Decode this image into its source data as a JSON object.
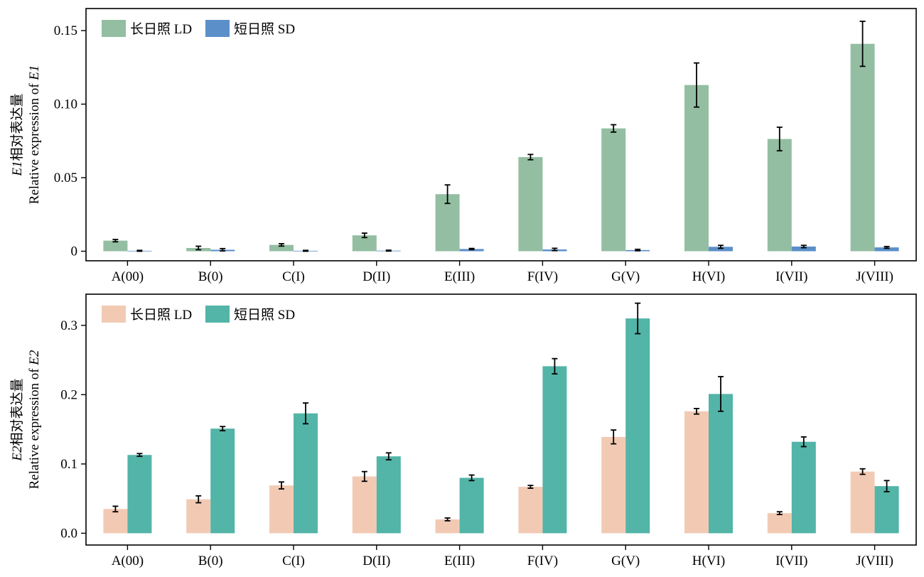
{
  "chart_data": [
    {
      "type": "bar",
      "categories": [
        "A(00)",
        "B(0)",
        "C(I)",
        "D(II)",
        "E(III)",
        "F(IV)",
        "G(V)",
        "H(VI)",
        "I(VII)",
        "J(VIII)"
      ],
      "ylabel_line1": "E1相对表达量",
      "ylabel_line2": "Relative expression of E1",
      "ylim": [
        -0.0065,
        0.165
      ],
      "yticks": [
        0,
        0.05,
        0.1,
        0.15
      ],
      "ytick_labels": [
        "0",
        "0.05",
        "0.10",
        "0.15"
      ],
      "legend_position": "top-left",
      "series": [
        {
          "name": "长日照 LD",
          "color": "#93bea2",
          "values": [
            0.0072,
            0.0022,
            0.0043,
            0.0108,
            0.0388,
            0.064,
            0.0835,
            0.113,
            0.0763,
            0.141
          ],
          "errors": [
            0.0008,
            0.0012,
            0.0008,
            0.0015,
            0.0063,
            0.0018,
            0.0025,
            0.015,
            0.008,
            0.0153
          ]
        },
        {
          "name": "短日照 SD",
          "color": "#5b8fc9",
          "values": [
            0.0003,
            0.001,
            0.0003,
            0.0004,
            0.0015,
            0.0012,
            0.0008,
            0.003,
            0.0032,
            0.0026
          ],
          "errors": [
            0.0003,
            0.0008,
            0.0003,
            0.0003,
            0.0004,
            0.0008,
            0.0005,
            0.001,
            0.0008,
            0.0006
          ]
        }
      ]
    },
    {
      "type": "bar",
      "categories": [
        "A(00)",
        "B(0)",
        "C(I)",
        "D(II)",
        "E(III)",
        "F(IV)",
        "G(V)",
        "H(VI)",
        "I(VII)",
        "J(VIII)"
      ],
      "ylabel_line1": "E2相对表达量",
      "ylabel_line2": "Relative expression of E2",
      "ylim": [
        -0.017,
        0.345
      ],
      "yticks": [
        0,
        0.1,
        0.2,
        0.3
      ],
      "ytick_labels": [
        "0.0",
        "0.1",
        "0.2",
        "0.3"
      ],
      "legend_position": "top-left",
      "series": [
        {
          "name": "长日照 LD",
          "color": "#f2cab4",
          "values": [
            0.035,
            0.049,
            0.069,
            0.082,
            0.02,
            0.067,
            0.139,
            0.176,
            0.029,
            0.089
          ],
          "errors": [
            0.004,
            0.005,
            0.005,
            0.007,
            0.002,
            0.002,
            0.01,
            0.004,
            0.002,
            0.004
          ]
        },
        {
          "name": "短日照 SD",
          "color": "#53b4a8",
          "values": [
            0.113,
            0.151,
            0.173,
            0.111,
            0.08,
            0.241,
            0.31,
            0.201,
            0.132,
            0.068
          ],
          "errors": [
            0.002,
            0.003,
            0.015,
            0.005,
            0.004,
            0.011,
            0.022,
            0.025,
            0.007,
            0.008
          ]
        }
      ]
    }
  ]
}
